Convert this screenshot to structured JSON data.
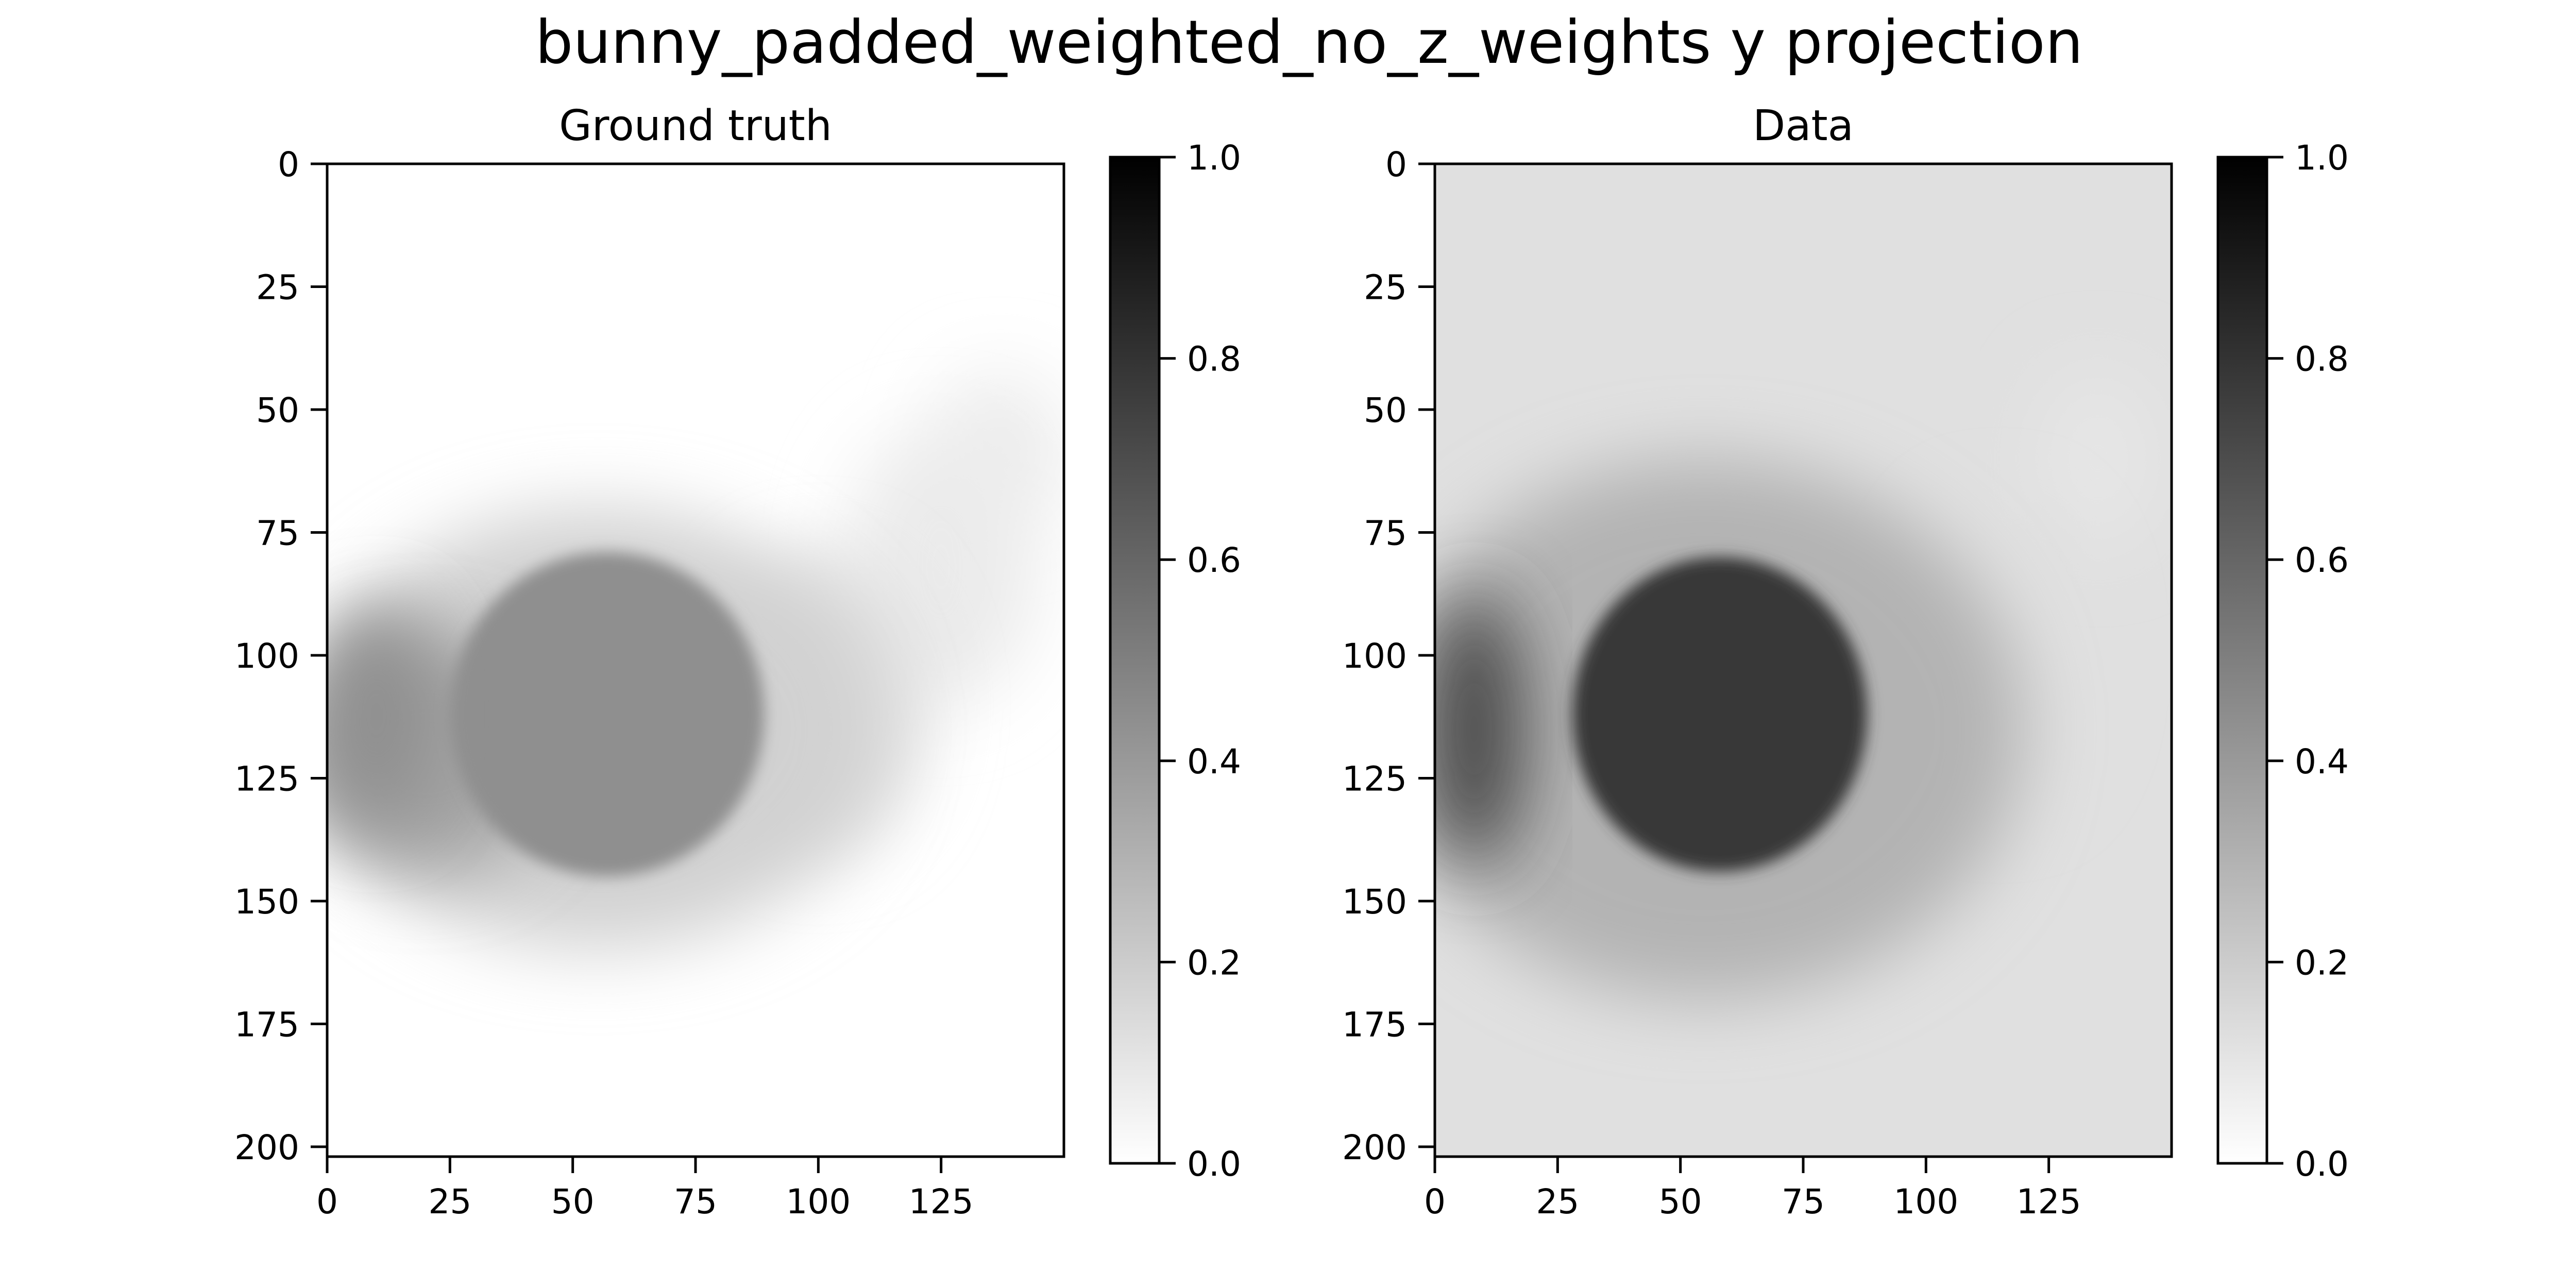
{
  "figure_title": "bunny_padded_weighted_no_z_weights y projection",
  "chart_data": [
    {
      "type": "heatmap",
      "title": "Ground truth",
      "colormap": "gray_r",
      "x_range": [
        0,
        150
      ],
      "y_range": [
        0,
        202
      ],
      "y_inverted": true,
      "xticks": [
        0,
        25,
        50,
        75,
        100,
        125
      ],
      "yticks": [
        0,
        25,
        50,
        75,
        100,
        125,
        150,
        175,
        200
      ],
      "colorbar": {
        "range": [
          0.0,
          1.0
        ],
        "ticks": [
          "0.0",
          "0.2",
          "0.4",
          "0.6",
          "0.8",
          "1.0"
        ]
      },
      "blobs": [
        {
          "cx": 57,
          "cy": 112,
          "rx": 32,
          "ry": 33,
          "value": 0.44,
          "sharp": true
        },
        {
          "cx": 20,
          "cy": 120,
          "rx": 26,
          "ry": 24,
          "value": 0.36,
          "sharp": false
        },
        {
          "cx": 10,
          "cy": 112,
          "rx": 12,
          "ry": 22,
          "value": 0.44,
          "sharp": false
        },
        {
          "cx": 55,
          "cy": 115,
          "rx": 58,
          "ry": 45,
          "value": 0.18,
          "sharp": false
        },
        {
          "cx": 100,
          "cy": 110,
          "rx": 22,
          "ry": 30,
          "value": 0.12,
          "sharp": false
        },
        {
          "cx": 125,
          "cy": 82,
          "rx": 20,
          "ry": 28,
          "value": 0.08,
          "sharp": false
        },
        {
          "cx": 137,
          "cy": 58,
          "rx": 14,
          "ry": 16,
          "value": 0.07,
          "sharp": false
        }
      ]
    },
    {
      "type": "heatmap",
      "title": "Data",
      "colormap": "gray_r",
      "x_range": [
        0,
        150
      ],
      "y_range": [
        0,
        202
      ],
      "y_inverted": true,
      "xticks": [
        0,
        25,
        50,
        75,
        100,
        125
      ],
      "yticks": [
        0,
        25,
        50,
        75,
        100,
        125,
        150,
        175,
        200
      ],
      "colorbar": {
        "range": [
          0.0,
          1.0
        ],
        "ticks": [
          "0.0",
          "0.2",
          "0.4",
          "0.6",
          "0.8",
          "1.0"
        ]
      },
      "background": 0.12,
      "blobs": [
        {
          "cx": 58,
          "cy": 112,
          "rx": 30,
          "ry": 32,
          "value": 0.78,
          "sharp": true
        },
        {
          "cx": 8,
          "cy": 115,
          "rx": 10,
          "ry": 28,
          "value": 0.72,
          "sharp": false
        },
        {
          "cx": 55,
          "cy": 115,
          "rx": 65,
          "ry": 55,
          "value": 0.3,
          "sharp": false
        },
        {
          "cx": 115,
          "cy": 100,
          "rx": 18,
          "ry": 30,
          "value": 0.12,
          "sharp": false
        },
        {
          "cx": 135,
          "cy": 60,
          "rx": 12,
          "ry": 18,
          "value": 0.1,
          "sharp": false
        }
      ]
    }
  ]
}
